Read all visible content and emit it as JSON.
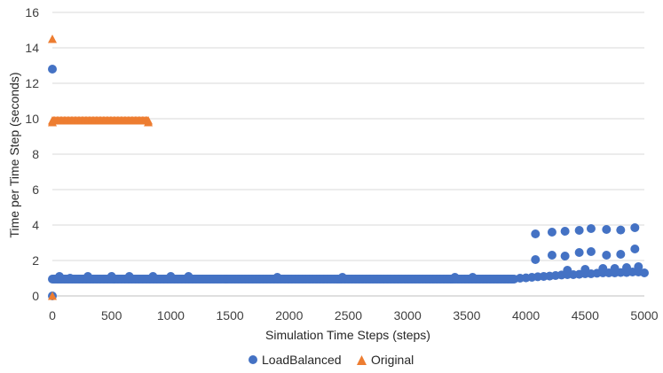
{
  "colors": {
    "series_loadbalanced": "#4472C4",
    "series_original": "#ED7D31",
    "gridline": "#D9D9D9",
    "axis": "#BFBFBF"
  },
  "chart_data": {
    "type": "scatter",
    "title": "",
    "xlabel": "Simulation Time Steps (steps)",
    "ylabel": "Time per Time Step (seconds)",
    "xlim": [
      0,
      5000
    ],
    "ylim": [
      0,
      16
    ],
    "xticks": [
      "0",
      "500",
      "1000",
      "1500",
      "2000",
      "2500",
      "3000",
      "3500",
      "4000",
      "4500",
      "5000"
    ],
    "yticks": [
      "0",
      "2",
      "4",
      "6",
      "8",
      "10",
      "12",
      "14",
      "16"
    ],
    "grid": "horizontal",
    "legend_position": "bottom",
    "series": [
      {
        "name": "LoadBalanced",
        "marker": "circle",
        "baseline": {
          "x_start": 0,
          "x_end": 3900,
          "step": 10,
          "y": 0.95
        },
        "points": [
          [
            0,
            12.8
          ],
          [
            0,
            0.0
          ],
          [
            60,
            1.1
          ],
          [
            150,
            1.0
          ],
          [
            300,
            1.1
          ],
          [
            500,
            1.1
          ],
          [
            650,
            1.1
          ],
          [
            850,
            1.1
          ],
          [
            1000,
            1.1
          ],
          [
            1150,
            1.1
          ],
          [
            1900,
            1.05
          ],
          [
            2450,
            1.05
          ],
          [
            3400,
            1.05
          ],
          [
            3550,
            1.05
          ],
          [
            3950,
            1.0
          ],
          [
            4000,
            1.02
          ],
          [
            4050,
            1.05
          ],
          [
            4100,
            1.08
          ],
          [
            4150,
            1.1
          ],
          [
            4200,
            1.12
          ],
          [
            4250,
            1.15
          ],
          [
            4300,
            1.18
          ],
          [
            4350,
            1.2
          ],
          [
            4400,
            1.2
          ],
          [
            4450,
            1.22
          ],
          [
            4500,
            1.25
          ],
          [
            4550,
            1.25
          ],
          [
            4600,
            1.28
          ],
          [
            4650,
            1.3
          ],
          [
            4700,
            1.3
          ],
          [
            4750,
            1.3
          ],
          [
            4800,
            1.32
          ],
          [
            4850,
            1.32
          ],
          [
            4900,
            1.35
          ],
          [
            4950,
            1.35
          ],
          [
            5000,
            1.3
          ],
          [
            4080,
            3.5
          ],
          [
            4220,
            3.6
          ],
          [
            4330,
            3.65
          ],
          [
            4450,
            3.7
          ],
          [
            4550,
            3.8
          ],
          [
            4680,
            3.75
          ],
          [
            4800,
            3.72
          ],
          [
            4920,
            3.85
          ],
          [
            4080,
            2.05
          ],
          [
            4220,
            2.3
          ],
          [
            4330,
            2.25
          ],
          [
            4450,
            2.45
          ],
          [
            4550,
            2.5
          ],
          [
            4680,
            2.3
          ],
          [
            4800,
            2.35
          ],
          [
            4920,
            2.65
          ],
          [
            4350,
            1.45
          ],
          [
            4500,
            1.5
          ],
          [
            4650,
            1.55
          ],
          [
            4750,
            1.55
          ],
          [
            4850,
            1.6
          ],
          [
            4950,
            1.65
          ]
        ]
      },
      {
        "name": "Original",
        "marker": "triangle",
        "baseline": {
          "x_start": 0,
          "x_end": 810,
          "step": 10,
          "y": 9.9
        },
        "points": [
          [
            0,
            14.5
          ],
          [
            0,
            0.0
          ],
          [
            810,
            9.8
          ],
          [
            0,
            9.8
          ]
        ]
      }
    ]
  }
}
